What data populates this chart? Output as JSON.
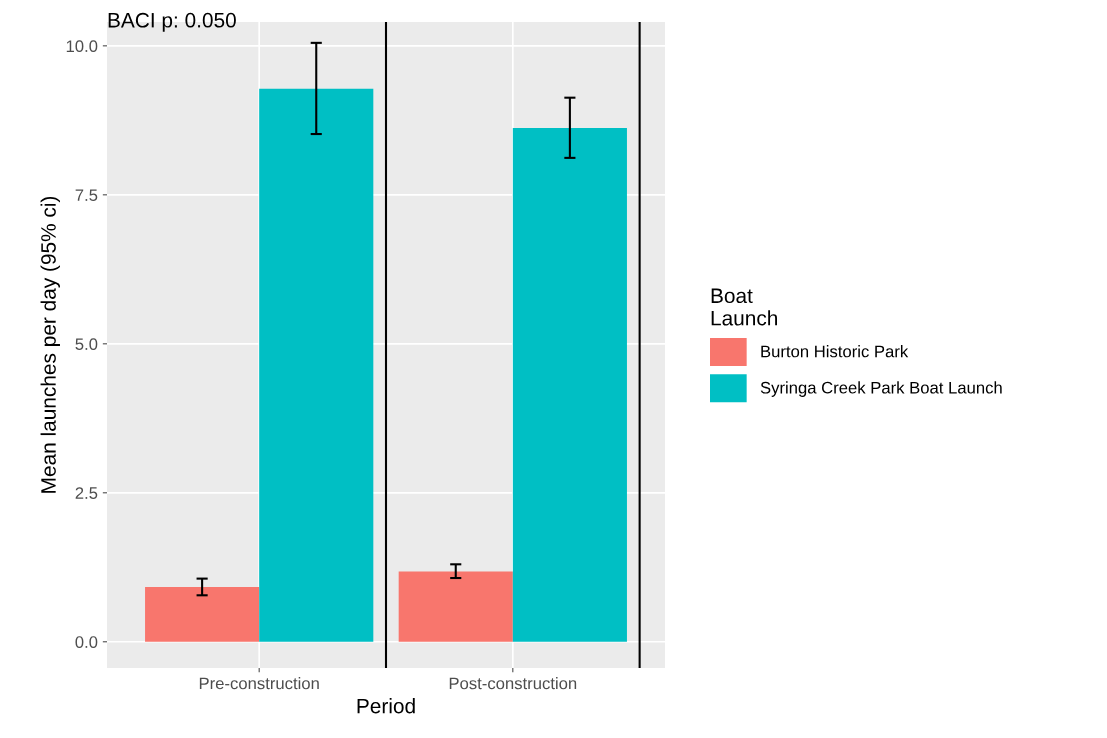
{
  "chart_data": {
    "type": "bar",
    "xlabel": "Period",
    "ylabel": "Mean launches per day (95% ci)",
    "legend_title": "Boat\nLaunch",
    "categories": [
      "Pre-construction",
      "Post-construction"
    ],
    "series": [
      {
        "name": "Burton Historic Park",
        "color": "#f8766d",
        "values": [
          0.92,
          1.18
        ],
        "errors": [
          [
            0.78,
            1.06
          ],
          [
            1.07,
            1.3
          ]
        ]
      },
      {
        "name": "Syringa Creek Park Boat Launch",
        "color": "#00bfc4",
        "values": [
          9.28,
          8.62
        ],
        "errors": [
          [
            8.52,
            10.05
          ],
          [
            8.12,
            9.13
          ]
        ]
      }
    ],
    "ylim": [
      -0.44,
      10.4
    ],
    "yticks": [
      {
        "value": 0,
        "label": "0.0"
      },
      {
        "value": 2.5,
        "label": "2.5"
      },
      {
        "value": 5,
        "label": "5.0"
      },
      {
        "value": 7.5,
        "label": "7.5"
      },
      {
        "value": 10,
        "label": "10.0"
      }
    ],
    "grid": true,
    "legend": "right",
    "annotations": [
      "BACI p: 0.050"
    ]
  }
}
